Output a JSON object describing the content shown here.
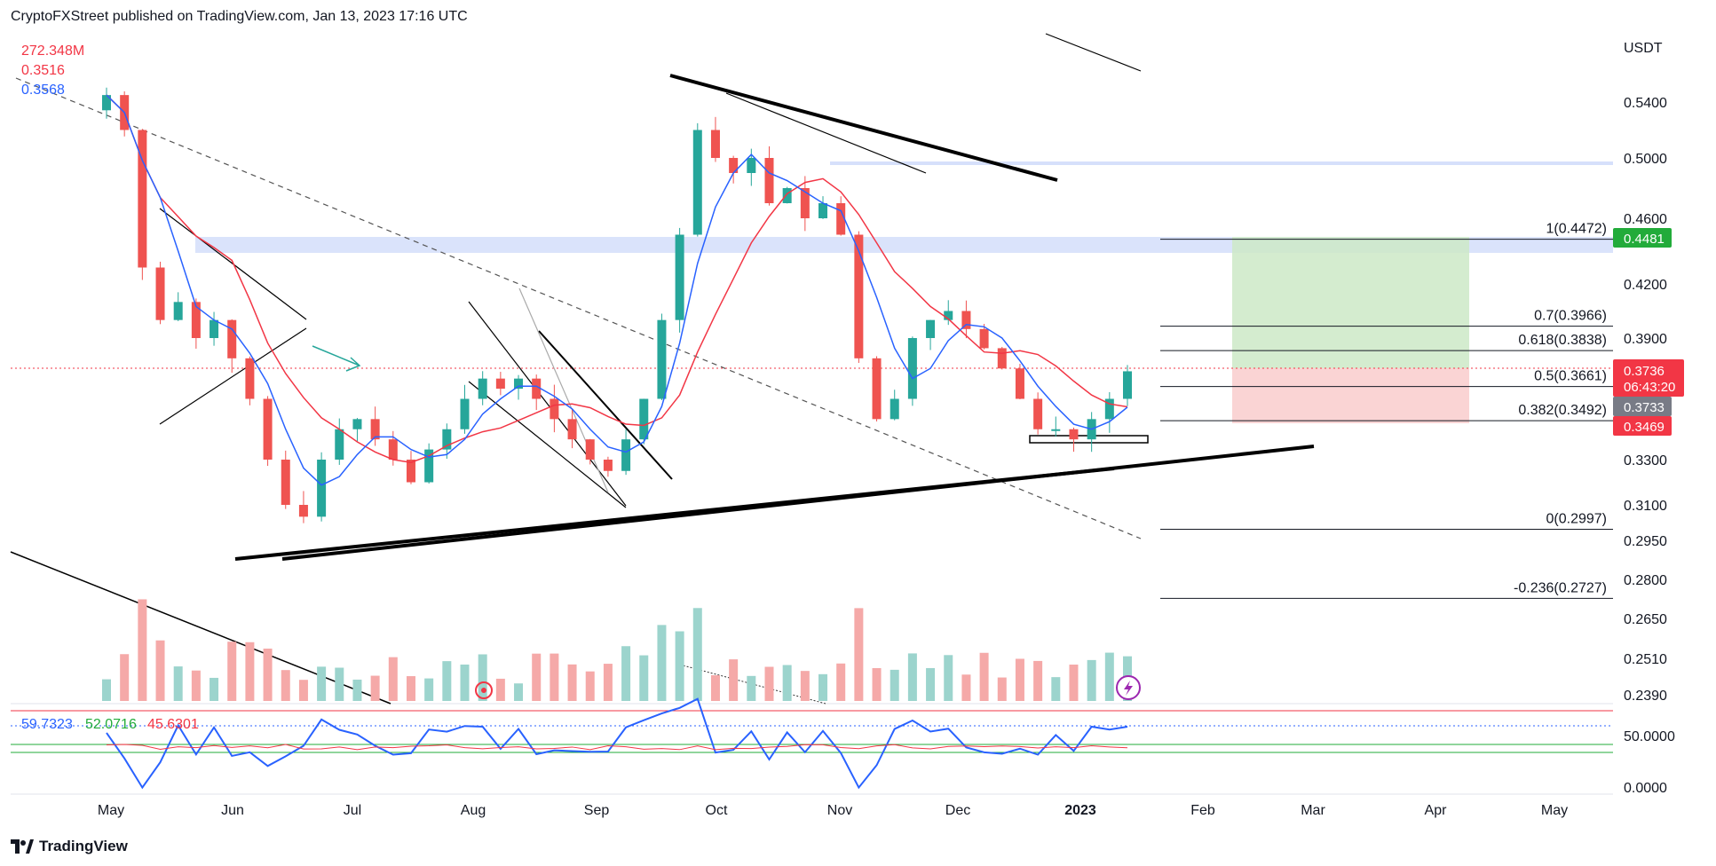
{
  "header": {
    "text": "CryptoFXStreet published on TradingView.com, Jan 13, 2023 17:16 UTC"
  },
  "footer": {
    "brand": "TradingView"
  },
  "chart_data": {
    "type": "candlestick",
    "currency": "USDT",
    "price_ticks": [
      "0.5400",
      "0.5000",
      "0.4600",
      "0.4200",
      "0.3900",
      "0.3300",
      "0.3100",
      "0.2950",
      "0.2800",
      "0.2650",
      "0.2510",
      "0.2390"
    ],
    "time_ticks": [
      "May",
      "Jun",
      "Jul",
      "Aug",
      "Sep",
      "Oct",
      "Nov",
      "Dec",
      "2023",
      "Feb",
      "Mar",
      "Apr",
      "May"
    ],
    "legend": {
      "volume": "272.348M",
      "ma_red": "0.3516",
      "ma_blue": "0.3568"
    },
    "fib_levels": [
      {
        "label": "1(0.4472)",
        "ratio": 1,
        "price": 0.4472
      },
      {
        "label": "0.7(0.3966)",
        "ratio": 0.7,
        "price": 0.3966
      },
      {
        "label": "0.618(0.3838)",
        "ratio": 0.618,
        "price": 0.3838
      },
      {
        "label": "0.5(0.3661)",
        "ratio": 0.5,
        "price": 0.3661
      },
      {
        "label": "0.382(0.3492)",
        "ratio": 0.382,
        "price": 0.3492
      },
      {
        "label": "0(0.2997)",
        "ratio": 0,
        "price": 0.2997
      },
      {
        "label": "-0.236(0.2727)",
        "ratio": -0.236,
        "price": 0.2727
      }
    ],
    "badges": {
      "target": {
        "value": "0.4481",
        "color": "#22ab3a"
      },
      "last": {
        "value": "0.3736",
        "color": "#f23645"
      },
      "countdown": {
        "value": "06:43:20",
        "color": "#f23645"
      },
      "ma": {
        "value": "0.3733",
        "color": "#787b86"
      },
      "stop": {
        "value": "0.3469",
        "color": "#f23645"
      }
    },
    "position": {
      "entry": 0.3736,
      "target": 0.4481,
      "stop": 0.3469
    },
    "close_series": [
      0.545,
      0.52,
      0.43,
      0.4,
      0.41,
      0.39,
      0.4,
      0.38,
      0.36,
      0.33,
      0.31,
      0.305,
      0.33,
      0.345,
      0.35,
      0.34,
      0.33,
      0.32,
      0.335,
      0.345,
      0.36,
      0.37,
      0.365,
      0.37,
      0.36,
      0.35,
      0.34,
      0.33,
      0.325,
      0.34,
      0.36,
      0.4,
      0.45,
      0.52,
      0.5,
      0.49,
      0.5,
      0.47,
      0.48,
      0.46,
      0.47,
      0.45,
      0.38,
      0.35,
      0.36,
      0.39,
      0.4,
      0.405,
      0.395,
      0.385,
      0.375,
      0.36,
      0.345,
      0.345,
      0.34,
      0.35,
      0.36,
      0.3736
    ],
    "rsi": {
      "values_text": [
        "59.7323",
        "52.0716",
        "45.6301"
      ],
      "colors": [
        "#2962ff",
        "#22ab3a",
        "#f23645"
      ],
      "ticks": [
        "50.0000",
        "0.0000"
      ]
    },
    "colors": {
      "up": "#26a69a",
      "down": "#ef5350",
      "ma_blue": "#2962ff",
      "ma_red": "#f23645",
      "zone": "#d6e0fb"
    }
  }
}
